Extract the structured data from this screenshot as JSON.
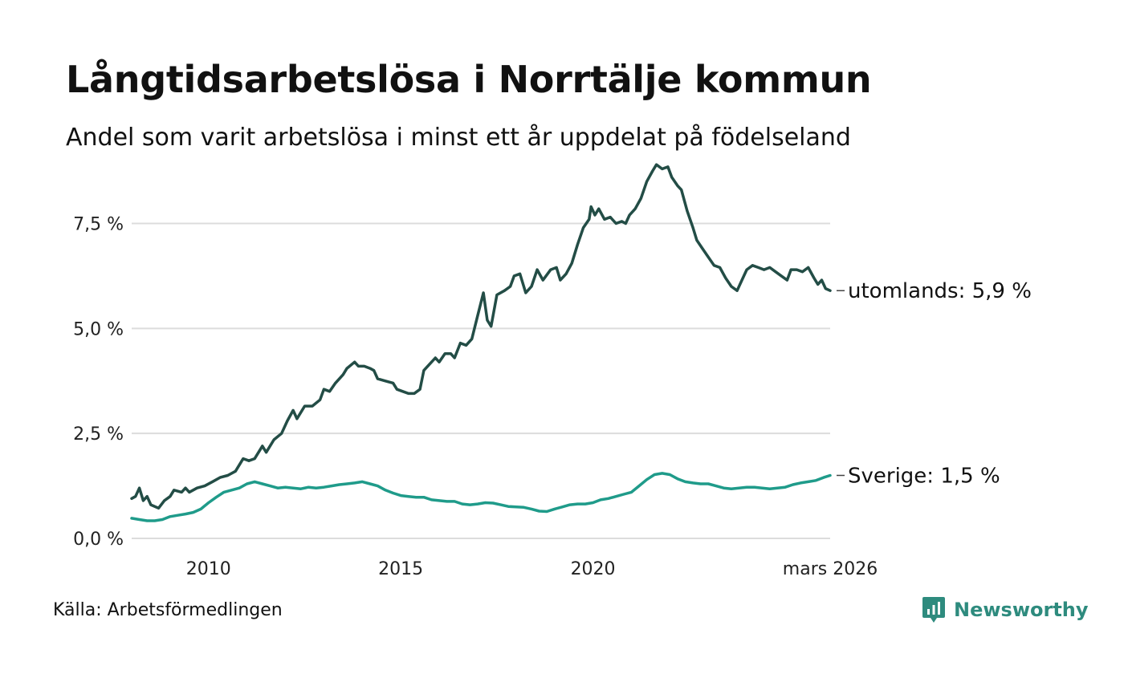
{
  "header": {
    "title": "Långtidsarbetslösa i Norrtälje kommun",
    "subtitle": "Andel som varit arbetslösa i minst ett år uppdelat på födelseland"
  },
  "footer": {
    "source": "Källa: Arbetsförmedlingen",
    "brand": "Newsworthy",
    "brand_color": "#2e8b7e"
  },
  "chart_data": {
    "type": "line",
    "title": "Långtidsarbetslösa i Norrtälje kommun",
    "xlabel": "",
    "ylabel": "",
    "ylim": [
      0,
      9
    ],
    "y_ticks": [
      {
        "value": 0,
        "label": "0,0 %"
      },
      {
        "value": 2.5,
        "label": "2,5 %"
      },
      {
        "value": 5,
        "label": "5,0 %"
      },
      {
        "value": 7.5,
        "label": "7,5 %"
      }
    ],
    "x_range": [
      2008.0,
      2026.17
    ],
    "x_ticks": [
      {
        "value": 2010,
        "label": "2010"
      },
      {
        "value": 2015,
        "label": "2015"
      },
      {
        "value": 2020,
        "label": "2020"
      },
      {
        "value": 2026.17,
        "label": "mars 2026"
      }
    ],
    "grid": true,
    "series": [
      {
        "name": "utomlands",
        "end_label": "utomlands: 5,9 %",
        "color": "#234d46",
        "points": [
          [
            2008.0,
            0.95
          ],
          [
            2008.1,
            1.0
          ],
          [
            2008.2,
            1.2
          ],
          [
            2008.3,
            0.9
          ],
          [
            2008.4,
            1.0
          ],
          [
            2008.5,
            0.8
          ],
          [
            2008.7,
            0.72
          ],
          [
            2008.85,
            0.9
          ],
          [
            2009.0,
            1.0
          ],
          [
            2009.1,
            1.15
          ],
          [
            2009.3,
            1.1
          ],
          [
            2009.4,
            1.2
          ],
          [
            2009.5,
            1.1
          ],
          [
            2009.7,
            1.2
          ],
          [
            2009.9,
            1.25
          ],
          [
            2010.1,
            1.35
          ],
          [
            2010.3,
            1.45
          ],
          [
            2010.5,
            1.5
          ],
          [
            2010.7,
            1.6
          ],
          [
            2010.9,
            1.9
          ],
          [
            2011.05,
            1.85
          ],
          [
            2011.2,
            1.9
          ],
          [
            2011.4,
            2.2
          ],
          [
            2011.5,
            2.05
          ],
          [
            2011.7,
            2.35
          ],
          [
            2011.9,
            2.5
          ],
          [
            2012.05,
            2.8
          ],
          [
            2012.2,
            3.05
          ],
          [
            2012.3,
            2.85
          ],
          [
            2012.5,
            3.15
          ],
          [
            2012.7,
            3.15
          ],
          [
            2012.9,
            3.3
          ],
          [
            2013.0,
            3.55
          ],
          [
            2013.15,
            3.5
          ],
          [
            2013.3,
            3.7
          ],
          [
            2013.5,
            3.9
          ],
          [
            2013.6,
            4.05
          ],
          [
            2013.8,
            4.2
          ],
          [
            2013.9,
            4.1
          ],
          [
            2014.05,
            4.1
          ],
          [
            2014.2,
            4.05
          ],
          [
            2014.3,
            4.0
          ],
          [
            2014.4,
            3.8
          ],
          [
            2014.6,
            3.75
          ],
          [
            2014.8,
            3.7
          ],
          [
            2014.9,
            3.55
          ],
          [
            2015.05,
            3.5
          ],
          [
            2015.2,
            3.45
          ],
          [
            2015.35,
            3.45
          ],
          [
            2015.5,
            3.55
          ],
          [
            2015.6,
            4.0
          ],
          [
            2015.75,
            4.15
          ],
          [
            2015.9,
            4.3
          ],
          [
            2016.0,
            4.2
          ],
          [
            2016.15,
            4.4
          ],
          [
            2016.3,
            4.4
          ],
          [
            2016.4,
            4.3
          ],
          [
            2016.55,
            4.65
          ],
          [
            2016.7,
            4.6
          ],
          [
            2016.85,
            4.75
          ],
          [
            2017.0,
            5.3
          ],
          [
            2017.15,
            5.85
          ],
          [
            2017.25,
            5.2
          ],
          [
            2017.35,
            5.05
          ],
          [
            2017.5,
            5.8
          ],
          [
            2017.7,
            5.9
          ],
          [
            2017.85,
            6.0
          ],
          [
            2017.95,
            6.25
          ],
          [
            2018.1,
            6.3
          ],
          [
            2018.25,
            5.85
          ],
          [
            2018.4,
            6.0
          ],
          [
            2018.55,
            6.4
          ],
          [
            2018.7,
            6.15
          ],
          [
            2018.9,
            6.4
          ],
          [
            2019.05,
            6.45
          ],
          [
            2019.15,
            6.15
          ],
          [
            2019.3,
            6.3
          ],
          [
            2019.45,
            6.55
          ],
          [
            2019.6,
            7.0
          ],
          [
            2019.75,
            7.4
          ],
          [
            2019.9,
            7.6
          ],
          [
            2019.95,
            7.9
          ],
          [
            2020.05,
            7.7
          ],
          [
            2020.15,
            7.85
          ],
          [
            2020.3,
            7.6
          ],
          [
            2020.45,
            7.65
          ],
          [
            2020.6,
            7.5
          ],
          [
            2020.75,
            7.55
          ],
          [
            2020.85,
            7.5
          ],
          [
            2020.95,
            7.7
          ],
          [
            2021.1,
            7.85
          ],
          [
            2021.25,
            8.1
          ],
          [
            2021.4,
            8.5
          ],
          [
            2021.55,
            8.75
          ],
          [
            2021.65,
            8.9
          ],
          [
            2021.8,
            8.8
          ],
          [
            2021.95,
            8.85
          ],
          [
            2022.05,
            8.6
          ],
          [
            2022.2,
            8.4
          ],
          [
            2022.3,
            8.3
          ],
          [
            2022.45,
            7.8
          ],
          [
            2022.6,
            7.4
          ],
          [
            2022.7,
            7.1
          ],
          [
            2022.85,
            6.9
          ],
          [
            2023.0,
            6.7
          ],
          [
            2023.15,
            6.5
          ],
          [
            2023.3,
            6.45
          ],
          [
            2023.45,
            6.2
          ],
          [
            2023.6,
            6.0
          ],
          [
            2023.75,
            5.9
          ],
          [
            2023.9,
            6.2
          ],
          [
            2024.0,
            6.4
          ],
          [
            2024.15,
            6.5
          ],
          [
            2024.3,
            6.45
          ],
          [
            2024.45,
            6.4
          ],
          [
            2024.6,
            6.45
          ],
          [
            2024.75,
            6.35
          ],
          [
            2024.9,
            6.25
          ],
          [
            2025.05,
            6.15
          ],
          [
            2025.15,
            6.4
          ],
          [
            2025.3,
            6.4
          ],
          [
            2025.45,
            6.35
          ],
          [
            2025.6,
            6.45
          ],
          [
            2025.75,
            6.2
          ],
          [
            2025.85,
            6.05
          ],
          [
            2025.95,
            6.15
          ],
          [
            2026.05,
            5.95
          ],
          [
            2026.17,
            5.9
          ]
        ]
      },
      {
        "name": "Sverige",
        "end_label": "Sverige: 1,5 %",
        "color": "#1f9b8a",
        "points": [
          [
            2008.0,
            0.48
          ],
          [
            2008.2,
            0.45
          ],
          [
            2008.4,
            0.42
          ],
          [
            2008.6,
            0.42
          ],
          [
            2008.8,
            0.45
          ],
          [
            2009.0,
            0.52
          ],
          [
            2009.2,
            0.55
          ],
          [
            2009.4,
            0.58
          ],
          [
            2009.6,
            0.62
          ],
          [
            2009.8,
            0.7
          ],
          [
            2010.0,
            0.85
          ],
          [
            2010.2,
            0.98
          ],
          [
            2010.4,
            1.1
          ],
          [
            2010.6,
            1.15
          ],
          [
            2010.8,
            1.2
          ],
          [
            2011.0,
            1.3
          ],
          [
            2011.2,
            1.35
          ],
          [
            2011.4,
            1.3
          ],
          [
            2011.6,
            1.25
          ],
          [
            2011.8,
            1.2
          ],
          [
            2012.0,
            1.22
          ],
          [
            2012.2,
            1.2
          ],
          [
            2012.4,
            1.18
          ],
          [
            2012.6,
            1.22
          ],
          [
            2012.8,
            1.2
          ],
          [
            2013.0,
            1.22
          ],
          [
            2013.2,
            1.25
          ],
          [
            2013.4,
            1.28
          ],
          [
            2013.6,
            1.3
          ],
          [
            2013.8,
            1.32
          ],
          [
            2014.0,
            1.35
          ],
          [
            2014.2,
            1.3
          ],
          [
            2014.4,
            1.25
          ],
          [
            2014.6,
            1.15
          ],
          [
            2014.8,
            1.08
          ],
          [
            2015.0,
            1.02
          ],
          [
            2015.2,
            1.0
          ],
          [
            2015.4,
            0.98
          ],
          [
            2015.6,
            0.98
          ],
          [
            2015.8,
            0.92
          ],
          [
            2016.0,
            0.9
          ],
          [
            2016.2,
            0.88
          ],
          [
            2016.4,
            0.88
          ],
          [
            2016.6,
            0.82
          ],
          [
            2016.8,
            0.8
          ],
          [
            2017.0,
            0.82
          ],
          [
            2017.2,
            0.85
          ],
          [
            2017.4,
            0.84
          ],
          [
            2017.6,
            0.8
          ],
          [
            2017.8,
            0.76
          ],
          [
            2018.0,
            0.75
          ],
          [
            2018.2,
            0.74
          ],
          [
            2018.4,
            0.7
          ],
          [
            2018.6,
            0.65
          ],
          [
            2018.8,
            0.64
          ],
          [
            2019.0,
            0.7
          ],
          [
            2019.2,
            0.75
          ],
          [
            2019.4,
            0.8
          ],
          [
            2019.6,
            0.82
          ],
          [
            2019.8,
            0.82
          ],
          [
            2020.0,
            0.85
          ],
          [
            2020.2,
            0.92
          ],
          [
            2020.4,
            0.95
          ],
          [
            2020.6,
            1.0
          ],
          [
            2020.8,
            1.05
          ],
          [
            2021.0,
            1.1
          ],
          [
            2021.2,
            1.25
          ],
          [
            2021.4,
            1.4
          ],
          [
            2021.6,
            1.52
          ],
          [
            2021.8,
            1.55
          ],
          [
            2022.0,
            1.52
          ],
          [
            2022.2,
            1.42
          ],
          [
            2022.4,
            1.35
          ],
          [
            2022.6,
            1.32
          ],
          [
            2022.8,
            1.3
          ],
          [
            2023.0,
            1.3
          ],
          [
            2023.2,
            1.25
          ],
          [
            2023.4,
            1.2
          ],
          [
            2023.6,
            1.18
          ],
          [
            2023.8,
            1.2
          ],
          [
            2024.0,
            1.22
          ],
          [
            2024.2,
            1.22
          ],
          [
            2024.4,
            1.2
          ],
          [
            2024.6,
            1.18
          ],
          [
            2024.8,
            1.2
          ],
          [
            2025.0,
            1.22
          ],
          [
            2025.2,
            1.28
          ],
          [
            2025.4,
            1.32
          ],
          [
            2025.6,
            1.35
          ],
          [
            2025.8,
            1.38
          ],
          [
            2026.0,
            1.45
          ],
          [
            2026.17,
            1.5
          ]
        ]
      }
    ]
  }
}
